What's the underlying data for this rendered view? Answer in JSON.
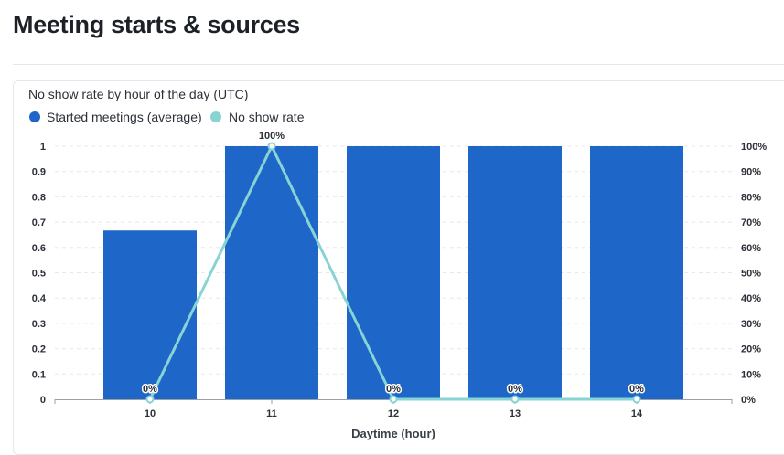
{
  "page": {
    "title": "Meeting starts & sources"
  },
  "colors": {
    "bar": "#1e67c8",
    "line": "#88d3d3",
    "gridline": "#e6e8eb",
    "axis": "#9aa0a6"
  },
  "chart_data": {
    "type": "bar+line",
    "title": "No show rate by hour of the day (UTC)",
    "xlabel": "Daytime (hour)",
    "ylabel": "",
    "categories": [
      "10",
      "11",
      "12",
      "13",
      "14"
    ],
    "series": [
      {
        "name": "Started meetings (average)",
        "kind": "bar",
        "axis": "left",
        "values": [
          0.667,
          1,
          1,
          1,
          1
        ]
      },
      {
        "name": "No show rate",
        "kind": "line",
        "axis": "right",
        "values": [
          0,
          100,
          0,
          0,
          0
        ],
        "data_labels": [
          "0%",
          "100%",
          "0%",
          "0%",
          "0%"
        ]
      }
    ],
    "y_left": {
      "ylim": [
        0,
        1
      ],
      "ticks": [
        "0",
        "0.1",
        "0.2",
        "0.3",
        "0.4",
        "0.5",
        "0.6",
        "0.7",
        "0.8",
        "0.9",
        "1"
      ]
    },
    "y_right": {
      "ylim": [
        0,
        100
      ],
      "ticks": [
        "0%",
        "10%",
        "20%",
        "30%",
        "40%",
        "50%",
        "60%",
        "70%",
        "80%",
        "90%",
        "100%"
      ]
    },
    "grid": true,
    "legend": "top-left"
  }
}
